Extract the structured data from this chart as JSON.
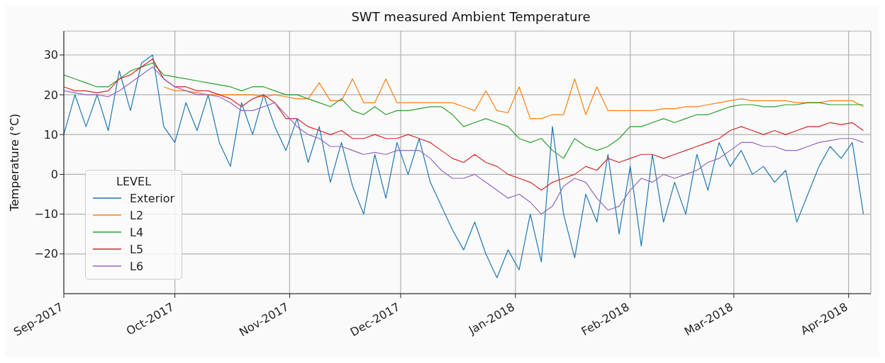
{
  "chart_data": {
    "type": "line",
    "title": "SWT measured Ambient Temperature",
    "ylabel": "Temperature (°C)",
    "legend_title": "LEVEL",
    "legend": "bottom left",
    "grid": true,
    "marker": "none",
    "line_style": "solid",
    "xlim": [
      "2017-09-01",
      "2018-04-07"
    ],
    "xticks": [
      {
        "value": "2017-09-01",
        "label": "Sep-2017"
      },
      {
        "value": "2017-10-01",
        "label": "Oct-2017"
      },
      {
        "value": "2017-11-01",
        "label": "Nov-2017"
      },
      {
        "value": "2017-12-01",
        "label": "Dec-2017"
      },
      {
        "value": "2018-01-01",
        "label": "Jan-2018"
      },
      {
        "value": "2018-02-01",
        "label": "Feb-2018"
      },
      {
        "value": "2018-03-01",
        "label": "Mar-2018"
      },
      {
        "value": "2018-04-01",
        "label": "Apr-2018"
      }
    ],
    "ylim": [
      -30,
      36
    ],
    "yticks": [
      {
        "value": -20,
        "label": "−20"
      },
      {
        "value": -10,
        "label": "−10"
      },
      0,
      10,
      20,
      30
    ],
    "x": [
      "2017-09-01",
      "2017-09-04",
      "2017-09-07",
      "2017-09-10",
      "2017-09-13",
      "2017-09-16",
      "2017-09-19",
      "2017-09-22",
      "2017-09-25",
      "2017-09-28",
      "2017-10-01",
      "2017-10-04",
      "2017-10-07",
      "2017-10-10",
      "2017-10-13",
      "2017-10-16",
      "2017-10-19",
      "2017-10-22",
      "2017-10-25",
      "2017-10-28",
      "2017-10-31",
      "2017-11-03",
      "2017-11-06",
      "2017-11-09",
      "2017-11-12",
      "2017-11-15",
      "2017-11-18",
      "2017-11-21",
      "2017-11-24",
      "2017-11-27",
      "2017-11-30",
      "2017-12-03",
      "2017-12-06",
      "2017-12-09",
      "2017-12-12",
      "2017-12-15",
      "2017-12-18",
      "2017-12-21",
      "2017-12-24",
      "2017-12-27",
      "2017-12-30",
      "2018-01-02",
      "2018-01-05",
      "2018-01-08",
      "2018-01-11",
      "2018-01-14",
      "2018-01-17",
      "2018-01-20",
      "2018-01-23",
      "2018-01-26",
      "2018-01-29",
      "2018-02-01",
      "2018-02-04",
      "2018-02-07",
      "2018-02-10",
      "2018-02-13",
      "2018-02-16",
      "2018-02-19",
      "2018-02-22",
      "2018-02-25",
      "2018-02-28",
      "2018-03-03",
      "2018-03-06",
      "2018-03-09",
      "2018-03-12",
      "2018-03-15",
      "2018-03-18",
      "2018-03-21",
      "2018-03-24",
      "2018-03-27",
      "2018-03-30",
      "2018-04-02",
      "2018-04-05"
    ],
    "series": [
      {
        "name": "Exterior",
        "color": "#1f77b4",
        "values": [
          10,
          20,
          12,
          20,
          11,
          26,
          16,
          28,
          30,
          12,
          8,
          18,
          11,
          20,
          8,
          2,
          18,
          10,
          20,
          12,
          6,
          14,
          3,
          12,
          -2,
          8,
          -3,
          -10,
          5,
          -6,
          8,
          0,
          9,
          -2,
          -8,
          -14,
          -19,
          -12,
          -20,
          -26,
          -19,
          -24,
          -10,
          -22,
          12,
          -10,
          -21,
          -5,
          -12,
          5,
          -15,
          2,
          -18,
          5,
          -12,
          -2,
          -10,
          5,
          -4,
          8,
          2,
          6,
          0,
          2,
          -2,
          1,
          -12,
          -5,
          2,
          7,
          4,
          8,
          -10
        ]
      },
      {
        "name": "L2",
        "color": "#ff7f0e",
        "values": [
          null,
          null,
          null,
          null,
          null,
          null,
          null,
          null,
          null,
          22,
          21,
          21,
          20.5,
          20,
          20,
          20,
          20,
          20,
          19.5,
          20,
          19.5,
          19,
          19,
          23,
          18.5,
          18.5,
          24,
          18,
          18,
          24,
          18,
          18,
          18,
          18,
          18,
          18,
          17,
          16,
          21,
          16,
          15.5,
          22,
          14,
          14,
          15,
          15,
          24,
          15,
          22,
          16,
          16,
          16,
          16,
          16,
          16.5,
          16.5,
          17,
          17,
          17.5,
          18,
          18.5,
          19,
          18.5,
          18.5,
          18.5,
          18.5,
          18,
          18,
          18,
          18.5,
          18.5,
          18.5,
          17
        ]
      },
      {
        "name": "L4",
        "color": "#2ca02c",
        "values": [
          25,
          24,
          23,
          22,
          22,
          24,
          26,
          27,
          28,
          25,
          24.5,
          24,
          23.5,
          23,
          22.5,
          22,
          21,
          22,
          22,
          21,
          20,
          20,
          19,
          18,
          17,
          19,
          16,
          15,
          17,
          15,
          16,
          16,
          16.5,
          17,
          17,
          15,
          12,
          13,
          14,
          13,
          12,
          9,
          8,
          9,
          6,
          4,
          9,
          7,
          6,
          7,
          9,
          12,
          12,
          13,
          14,
          13,
          14,
          15,
          15,
          16,
          17,
          17.5,
          17.5,
          17,
          17,
          17.5,
          17.5,
          18,
          18,
          17.5,
          17.5,
          17.5,
          17.5
        ]
      },
      {
        "name": "L5",
        "color": "#d62728",
        "values": [
          22,
          21,
          21,
          20.5,
          21,
          24,
          25,
          27,
          29,
          24,
          22,
          22,
          21,
          21,
          20,
          19,
          17,
          19,
          20,
          18,
          14,
          14,
          12,
          11,
          10,
          11,
          9,
          9,
          10,
          9,
          9,
          10,
          9,
          8,
          6,
          4,
          3,
          5,
          3,
          2,
          0,
          -1,
          -2,
          -4,
          -2,
          -1,
          0,
          2,
          1,
          4,
          3,
          4,
          5,
          5,
          4,
          5,
          6,
          7,
          8,
          9,
          11,
          12,
          11,
          10,
          11,
          10,
          11,
          12,
          12,
          13,
          12.5,
          13,
          11
        ]
      },
      {
        "name": "L6",
        "color": "#9467bd",
        "values": [
          21,
          20.5,
          20,
          20,
          19.5,
          21,
          23,
          25,
          27,
          24,
          22,
          21,
          20,
          20,
          19.5,
          18,
          16,
          16,
          17,
          18,
          15,
          12,
          10,
          9,
          7,
          7,
          6,
          5,
          5.5,
          5,
          6,
          6,
          6,
          4,
          1,
          -1,
          -1,
          0,
          -2,
          -4,
          -6,
          -5,
          -7,
          -10,
          -8,
          -3,
          -1,
          -2,
          -6,
          -9,
          -8,
          -4,
          -1,
          -2,
          0,
          -1,
          0,
          1,
          3,
          4,
          6,
          8,
          8,
          7,
          7,
          6,
          6,
          7,
          8,
          8.5,
          9,
          9,
          8
        ]
      }
    ]
  }
}
